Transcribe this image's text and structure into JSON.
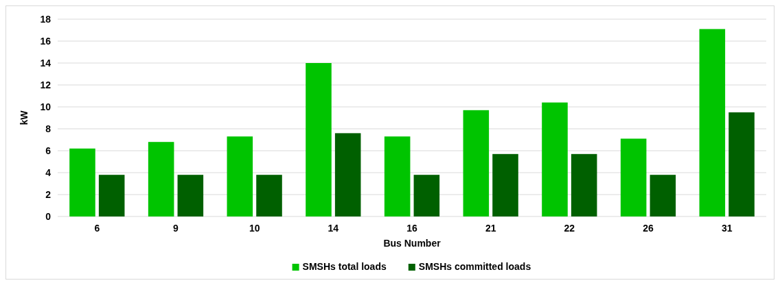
{
  "chart_data": {
    "type": "bar",
    "xlabel": "Bus Number",
    "ylabel": "kW",
    "categories": [
      "6",
      "9",
      "10",
      "14",
      "16",
      "21",
      "22",
      "26",
      "31"
    ],
    "series": [
      {
        "name": "SMSHs total loads",
        "color": "#00c400",
        "values": [
          6.2,
          6.8,
          7.3,
          14.0,
          7.3,
          9.7,
          10.4,
          7.1,
          17.1
        ]
      },
      {
        "name": "SMSHs committed loads",
        "color": "#006000",
        "values": [
          3.8,
          3.8,
          3.8,
          7.6,
          3.8,
          5.7,
          5.7,
          3.8,
          9.5
        ]
      }
    ],
    "ylim": [
      0,
      18
    ],
    "yticks": [
      0,
      2,
      4,
      6,
      8,
      10,
      12,
      14,
      16,
      18
    ],
    "grid": "y",
    "legend": "bottom"
  }
}
